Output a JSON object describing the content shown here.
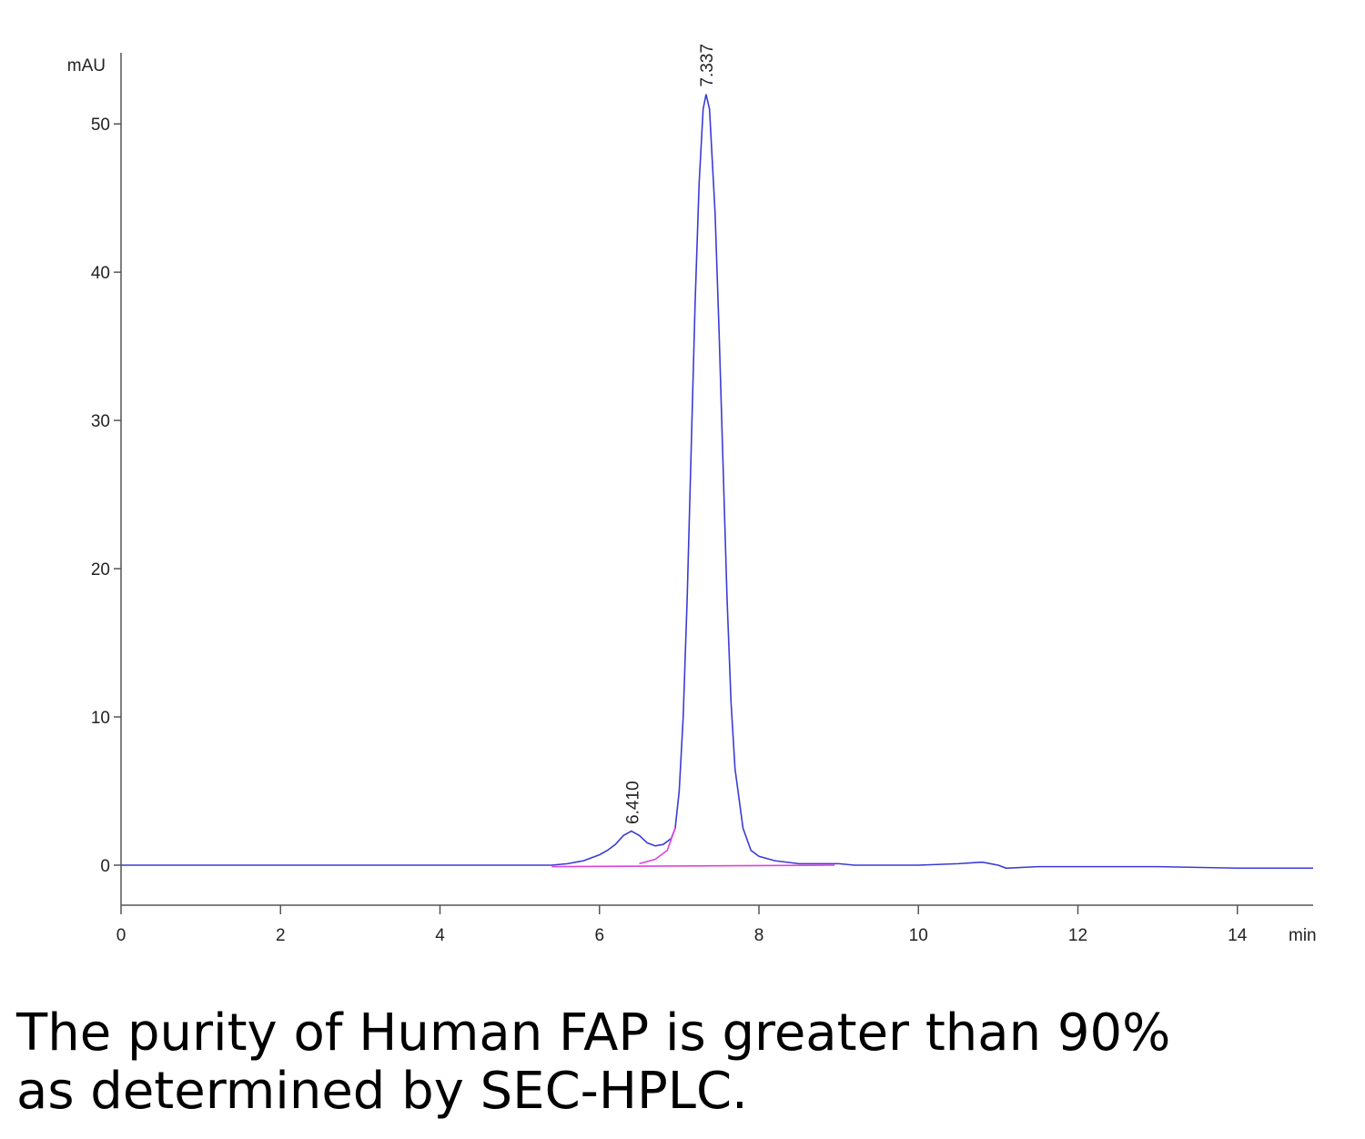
{
  "chart_data": {
    "type": "line",
    "ylabel": "mAU",
    "xlabel": "min",
    "xlim": [
      0,
      14.95
    ],
    "ylim": [
      -2.7,
      54.8
    ],
    "xticks": [
      0,
      2,
      4,
      6,
      8,
      10,
      12,
      14
    ],
    "yticks": [
      0,
      10,
      20,
      30,
      40,
      50
    ],
    "series": [
      {
        "color": "#3b3bd6",
        "x": [
          0,
          5.4,
          5.6,
          5.8,
          6.0,
          6.1,
          6.2,
          6.3,
          6.4,
          6.5,
          6.6,
          6.7,
          6.8,
          6.9,
          6.95,
          7.0,
          7.05,
          7.1,
          7.15,
          7.2,
          7.25,
          7.3,
          7.337,
          7.38,
          7.45,
          7.5,
          7.55,
          7.6,
          7.65,
          7.7,
          7.8,
          7.9,
          8.0,
          8.2,
          8.5,
          9.0,
          9.2,
          10.0,
          10.5,
          10.8,
          11.0,
          11.1,
          11.5,
          13.0,
          14.0,
          14.95
        ],
        "values": [
          0,
          0,
          0.1,
          0.3,
          0.7,
          1.0,
          1.4,
          2.0,
          2.3,
          2.0,
          1.5,
          1.3,
          1.4,
          1.8,
          2.5,
          5,
          10,
          18,
          28,
          38,
          46,
          51,
          52,
          51,
          44,
          36,
          27,
          18,
          11,
          6.5,
          2.5,
          1.0,
          0.6,
          0.3,
          0.1,
          0.1,
          0,
          0,
          0.1,
          0.2,
          0,
          -0.2,
          -0.1,
          -0.1,
          -0.2,
          -0.2
        ]
      },
      {
        "color": "#e040e0",
        "x": [
          5.4,
          8.95
        ],
        "values": [
          -0.1,
          0
        ]
      },
      {
        "color": "#e040e0",
        "x": [
          6.5,
          6.7,
          6.85,
          6.95
        ],
        "values": [
          0.1,
          0.4,
          1.0,
          2.5
        ]
      }
    ],
    "peaks": [
      {
        "value": 6.41,
        "label": "6.410"
      },
      {
        "value": 7.337,
        "label": "7.337"
      }
    ]
  },
  "caption": [
    "The purity of Human FAP is greater than 90%",
    "as determined by SEC-HPLC."
  ]
}
